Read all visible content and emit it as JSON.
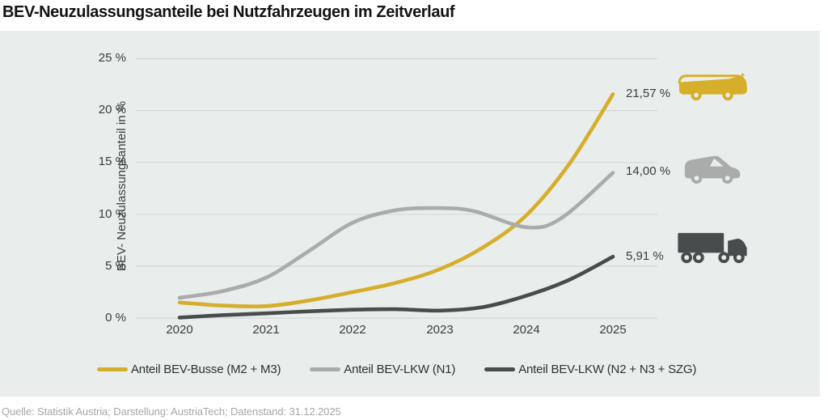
{
  "title": "BEV-Neuzulassungsanteile bei Nutzfahrzeugen im Zeitverlauf",
  "footer": "Quelle: Statistik Austria; Darstellung: AustriaTech; Datenstand: 31.12.2025",
  "colors": {
    "panel_bg": "#e9edec",
    "grid": "#d4d9d8",
    "gold": "#d6ae2a",
    "gray": "#a9acab",
    "dark": "#494c4c",
    "text": "#3b3d3e",
    "footer_text": "#a4a8a7"
  },
  "chart_data": {
    "type": "line",
    "title": "BEV-Neuzulassungsanteile bei Nutzfahrzeugen im Zeitverlauf",
    "xlabel": "",
    "ylabel": "BEV- Neuzulassungsanteil in %",
    "xlim": [
      2020,
      2025
    ],
    "ylim": [
      0,
      25
    ],
    "grid": "horizontal",
    "legend_position": "bottom",
    "x_tick_labels": [
      "2020",
      "2021",
      "2022",
      "2023",
      "2024",
      "2025"
    ],
    "y_tick_labels": [
      "25 %",
      "20 %",
      "15 %",
      "10 %",
      "5 %",
      "0 %"
    ],
    "y_tick_values": [
      25,
      20,
      15,
      10,
      5,
      0
    ],
    "series": [
      {
        "name": "Anteil BEV-Busse (M2 + M3)",
        "color_key": "gold",
        "icon": "bus",
        "end_label": "21,57 %",
        "final_value": 21.57,
        "points": [
          [
            2020,
            1.5
          ],
          [
            2020.5,
            1.2
          ],
          [
            2021,
            1.15
          ],
          [
            2021.5,
            1.7
          ],
          [
            2022,
            2.5
          ],
          [
            2022.5,
            3.4
          ],
          [
            2023,
            4.7
          ],
          [
            2023.5,
            6.8
          ],
          [
            2024,
            9.9
          ],
          [
            2024.5,
            14.9
          ],
          [
            2025,
            21.57
          ]
        ]
      },
      {
        "name": "Anteil BEV-LKW (N1)",
        "color_key": "gray",
        "icon": "van",
        "end_label": "14,00 %",
        "final_value": 14.0,
        "points": [
          [
            2020,
            1.95
          ],
          [
            2020.5,
            2.6
          ],
          [
            2021,
            3.9
          ],
          [
            2021.5,
            6.5
          ],
          [
            2022,
            9.2
          ],
          [
            2022.5,
            10.4
          ],
          [
            2023,
            10.6
          ],
          [
            2023.4,
            10.3
          ],
          [
            2024,
            8.75
          ],
          [
            2024.4,
            9.6
          ],
          [
            2025,
            14.0
          ]
        ]
      },
      {
        "name": "Anteil BEV-LKW (N2 + N3 + SZG)",
        "color_key": "dark",
        "icon": "truck",
        "end_label": "5,91 %",
        "final_value": 5.91,
        "points": [
          [
            2020,
            0.05
          ],
          [
            2020.5,
            0.28
          ],
          [
            2021,
            0.45
          ],
          [
            2021.5,
            0.65
          ],
          [
            2022,
            0.8
          ],
          [
            2022.5,
            0.85
          ],
          [
            2023,
            0.72
          ],
          [
            2023.5,
            1.05
          ],
          [
            2024,
            2.15
          ],
          [
            2024.5,
            3.7
          ],
          [
            2025,
            5.91
          ]
        ]
      }
    ]
  }
}
